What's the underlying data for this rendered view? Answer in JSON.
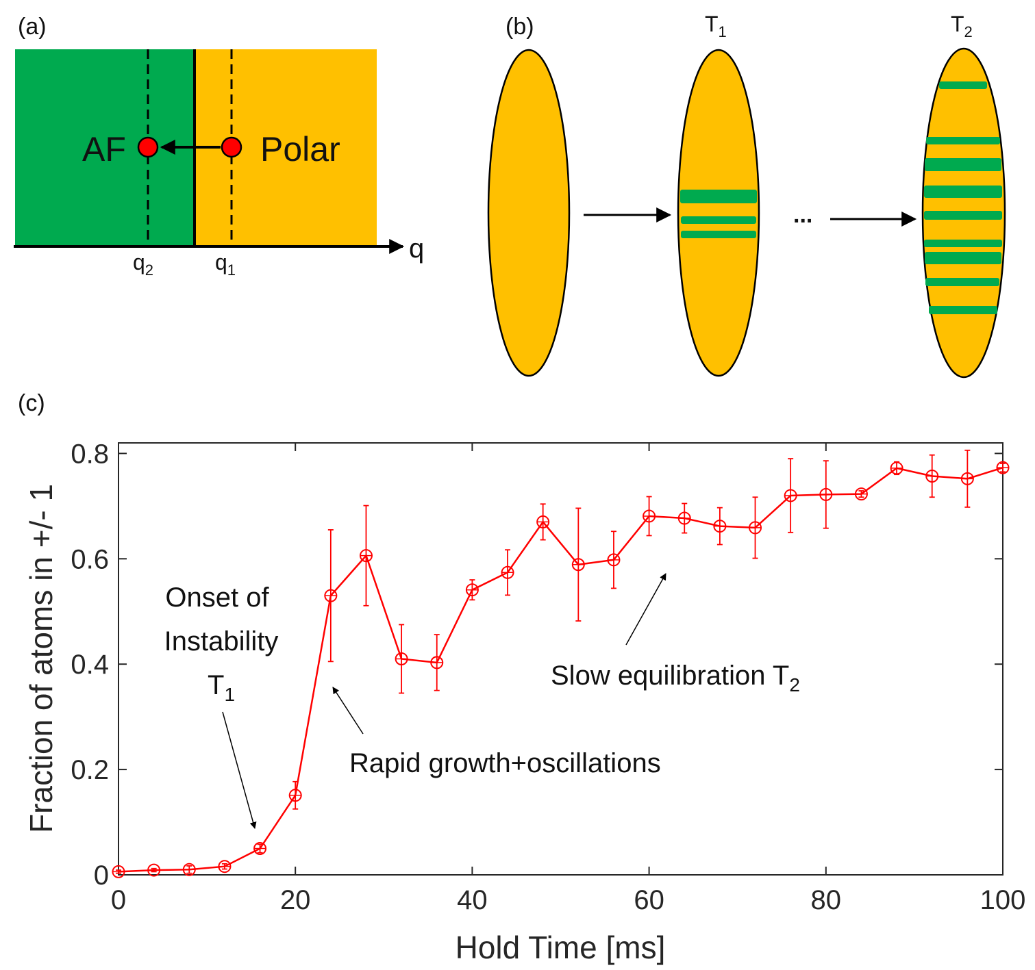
{
  "panel_a": {
    "label": "(a)",
    "af_label": "AF",
    "polar_label": "Polar",
    "axis_label": "q",
    "q2_base": "q",
    "q2_sub": "2",
    "q1_base": "q",
    "q1_sub": "1",
    "colors": {
      "af": "#00AA4F",
      "polar": "#FFC000",
      "point": "#FF0000"
    }
  },
  "panel_b": {
    "label": "(b)",
    "t1_base": "T",
    "t1_sub": "1",
    "t2_base": "T",
    "t2_sub": "2",
    "ellipsis": "..."
  },
  "panel_c": {
    "label": "(c)",
    "annotation_onset_line1": "Onset of",
    "annotation_onset_line2": "Instability",
    "annotation_onset_line3_base": "T",
    "annotation_onset_line3_sub": "1",
    "annotation_rapid": "Rapid growth+oscillations",
    "annotation_slow_base": "Slow equilibration T",
    "annotation_slow_sub": "2"
  },
  "chart_data": {
    "type": "line",
    "title": "",
    "xlabel": "Hold Time [ms]",
    "ylabel": "Fraction of atoms in +/- 1",
    "xlim": [
      0,
      100
    ],
    "ylim": [
      0,
      0.82
    ],
    "xticks": [
      0,
      20,
      40,
      60,
      80,
      100
    ],
    "xtick_labels": [
      "0",
      "20",
      "40",
      "60",
      "80",
      "100"
    ],
    "yticks": [
      0,
      0.2,
      0.4,
      0.6,
      0.8
    ],
    "ytick_labels": [
      "0",
      "0.2",
      "0.4",
      "0.6",
      "0.8"
    ],
    "color": "#FF0000",
    "series": [
      {
        "name": "fraction",
        "x": [
          0,
          4,
          8,
          12,
          16,
          20,
          24,
          28,
          32,
          36,
          40,
          44,
          48,
          52,
          56,
          60,
          64,
          68,
          72,
          76,
          80,
          84,
          88,
          92,
          96,
          100
        ],
        "y": [
          0.006,
          0.009,
          0.01,
          0.016,
          0.05,
          0.151,
          0.53,
          0.606,
          0.41,
          0.403,
          0.541,
          0.574,
          0.67,
          0.589,
          0.598,
          0.681,
          0.677,
          0.662,
          0.659,
          0.72,
          0.722,
          0.723,
          0.772,
          0.757,
          0.752,
          0.773
        ],
        "err": [
          0.003,
          0.003,
          0.007,
          0.005,
          0.008,
          0.026,
          0.125,
          0.095,
          0.065,
          0.053,
          0.019,
          0.043,
          0.034,
          0.107,
          0.054,
          0.037,
          0.028,
          0.035,
          0.058,
          0.07,
          0.064,
          0.006,
          0.012,
          0.04,
          0.054,
          0.008
        ]
      }
    ]
  }
}
